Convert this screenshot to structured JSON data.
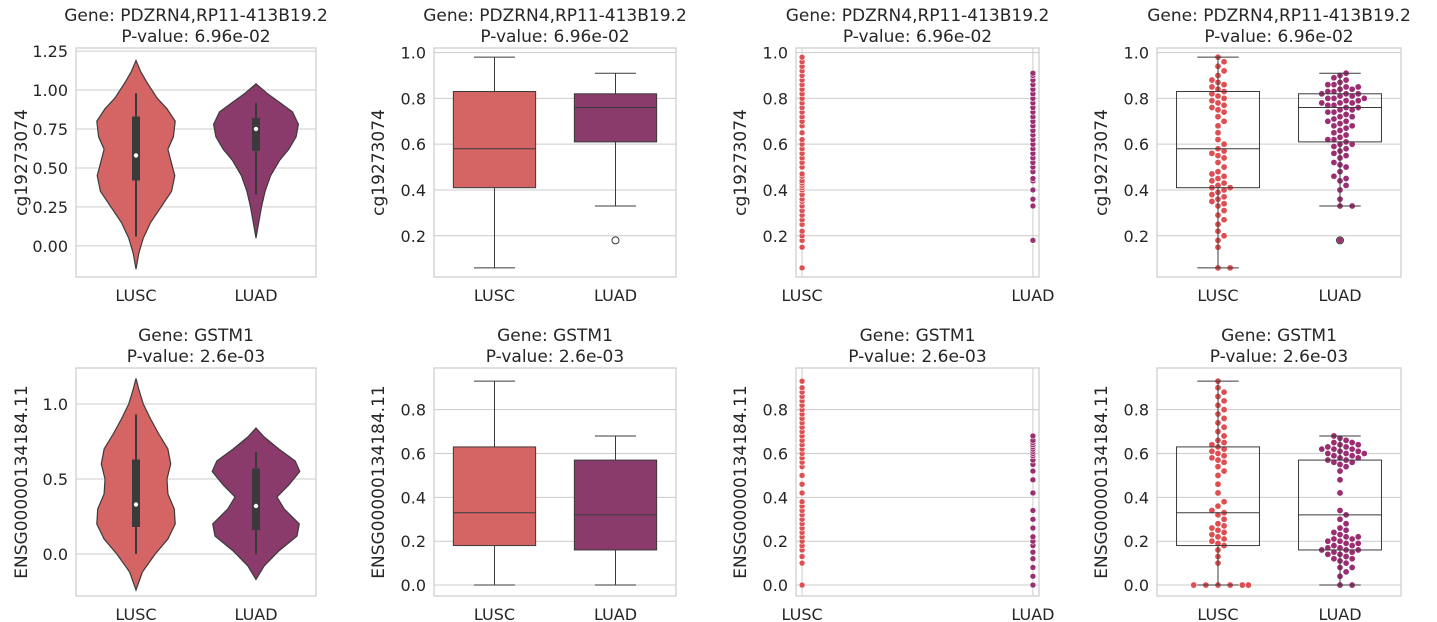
{
  "palette": {
    "LUSC": "#d56464",
    "LUAD": "#8a3b6b",
    "LUSC_point": "#dd4f52",
    "LUAD_point": "#9b2e72",
    "line": "#3b3b3b"
  },
  "chart_data": [
    {
      "type": "violin",
      "title": [
        "Gene: PDZRN4,RP11-413B19.2",
        "P-value: 6.96e-02"
      ],
      "ylabel": "cg19273074",
      "categories": [
        "LUSC",
        "LUAD"
      ],
      "ylim": [
        -0.2,
        1.27
      ],
      "yticks": [
        0.0,
        0.25,
        0.5,
        0.75,
        1.0,
        1.25
      ],
      "ytick_labels": [
        "0.00",
        "0.25",
        "0.50",
        "0.75",
        "1.00",
        "1.25"
      ],
      "violins": [
        {
          "min": -0.15,
          "max": 1.19,
          "median": 0.58,
          "q1": 0.42,
          "q3": 0.83,
          "wlo": 0.06,
          "whi": 0.98,
          "profile": [
            [
              -0.15,
              0.0
            ],
            [
              -0.05,
              0.06
            ],
            [
              0.05,
              0.16
            ],
            [
              0.15,
              0.32
            ],
            [
              0.25,
              0.55
            ],
            [
              0.35,
              0.78
            ],
            [
              0.45,
              0.85
            ],
            [
              0.55,
              0.76
            ],
            [
              0.62,
              0.7
            ],
            [
              0.7,
              0.82
            ],
            [
              0.8,
              0.86
            ],
            [
              0.88,
              0.68
            ],
            [
              0.95,
              0.46
            ],
            [
              1.05,
              0.24
            ],
            [
              1.12,
              0.1
            ],
            [
              1.19,
              0.0
            ]
          ]
        },
        {
          "min": 0.05,
          "max": 1.04,
          "median": 0.75,
          "q1": 0.61,
          "q3": 0.82,
          "wlo": 0.33,
          "whi": 0.92,
          "profile": [
            [
              0.05,
              0.0
            ],
            [
              0.15,
              0.06
            ],
            [
              0.25,
              0.12
            ],
            [
              0.35,
              0.2
            ],
            [
              0.45,
              0.32
            ],
            [
              0.55,
              0.52
            ],
            [
              0.62,
              0.72
            ],
            [
              0.7,
              0.88
            ],
            [
              0.78,
              0.93
            ],
            [
              0.86,
              0.8
            ],
            [
              0.92,
              0.52
            ],
            [
              0.98,
              0.24
            ],
            [
              1.04,
              0.0
            ]
          ]
        }
      ]
    },
    {
      "type": "box",
      "title": [
        "Gene: PDZRN4,RP11-413B19.2",
        "P-value: 6.96e-02"
      ],
      "ylabel": "cg19273074",
      "categories": [
        "LUSC",
        "LUAD"
      ],
      "ylim": [
        0.02,
        1.02
      ],
      "yticks": [
        0.2,
        0.4,
        0.6,
        0.8,
        1.0
      ],
      "ytick_labels": [
        "0.2",
        "0.4",
        "0.6",
        "0.8",
        "1.0"
      ],
      "boxes": [
        {
          "q1": 0.41,
          "median": 0.58,
          "q3": 0.83,
          "wlo": 0.06,
          "whi": 0.98,
          "outliers": []
        },
        {
          "q1": 0.61,
          "median": 0.76,
          "q3": 0.82,
          "wlo": 0.33,
          "whi": 0.91,
          "outliers": [
            0.18
          ]
        }
      ]
    },
    {
      "type": "scatter",
      "title": [
        "Gene: PDZRN4,RP11-413B19.2",
        "P-value: 6.96e-02"
      ],
      "ylabel": "cg19273074",
      "categories": [
        "LUSC",
        "LUAD"
      ],
      "ylim": [
        0.02,
        1.02
      ],
      "yticks": [
        0.2,
        0.4,
        0.6,
        0.8,
        1.0
      ],
      "ytick_labels": [
        "0.2",
        "0.4",
        "0.6",
        "0.8",
        "1.0"
      ],
      "points": [
        [
          0.06,
          0.15,
          0.18,
          0.2,
          0.22,
          0.25,
          0.27,
          0.29,
          0.31,
          0.33,
          0.35,
          0.36,
          0.38,
          0.4,
          0.41,
          0.42,
          0.43,
          0.44,
          0.46,
          0.47,
          0.5,
          0.52,
          0.54,
          0.56,
          0.58,
          0.6,
          0.62,
          0.65,
          0.68,
          0.7,
          0.72,
          0.74,
          0.76,
          0.78,
          0.8,
          0.82,
          0.84,
          0.86,
          0.88,
          0.9,
          0.92,
          0.94,
          0.96,
          0.98
        ],
        [
          0.18,
          0.33,
          0.36,
          0.4,
          0.44,
          0.45,
          0.48,
          0.5,
          0.52,
          0.54,
          0.56,
          0.58,
          0.6,
          0.62,
          0.64,
          0.66,
          0.68,
          0.7,
          0.72,
          0.74,
          0.76,
          0.78,
          0.8,
          0.82,
          0.84,
          0.86,
          0.88,
          0.9,
          0.91
        ]
      ]
    },
    {
      "type": "swarm_box",
      "title": [
        "Gene: PDZRN4,RP11-413B19.2",
        "P-value: 6.96e-02"
      ],
      "ylabel": "cg19273074",
      "categories": [
        "LUSC",
        "LUAD"
      ],
      "ylim": [
        0.02,
        1.02
      ],
      "yticks": [
        0.2,
        0.4,
        0.6,
        0.8,
        1.0
      ],
      "ytick_labels": [
        "0.2",
        "0.4",
        "0.6",
        "0.8",
        "1.0"
      ],
      "boxes": [
        {
          "q1": 0.41,
          "median": 0.58,
          "q3": 0.83,
          "wlo": 0.06,
          "whi": 0.98,
          "outliers": []
        },
        {
          "q1": 0.61,
          "median": 0.76,
          "q3": 0.82,
          "wlo": 0.33,
          "whi": 0.91,
          "outliers": [
            0.18
          ]
        }
      ],
      "points": [
        [
          0.06,
          0.06,
          0.15,
          0.18,
          0.2,
          0.22,
          0.25,
          0.27,
          0.29,
          0.31,
          0.33,
          0.34,
          0.35,
          0.36,
          0.37,
          0.38,
          0.39,
          0.4,
          0.41,
          0.41,
          0.42,
          0.43,
          0.44,
          0.45,
          0.46,
          0.47,
          0.48,
          0.5,
          0.52,
          0.54,
          0.55,
          0.56,
          0.57,
          0.58,
          0.6,
          0.62,
          0.65,
          0.68,
          0.7,
          0.72,
          0.74,
          0.75,
          0.76,
          0.77,
          0.78,
          0.79,
          0.8,
          0.81,
          0.82,
          0.83,
          0.84,
          0.85,
          0.86,
          0.87,
          0.88,
          0.9,
          0.92,
          0.94,
          0.96,
          0.98
        ],
        [
          0.18,
          0.33,
          0.33,
          0.36,
          0.4,
          0.42,
          0.44,
          0.45,
          0.46,
          0.48,
          0.5,
          0.51,
          0.52,
          0.54,
          0.55,
          0.56,
          0.57,
          0.58,
          0.59,
          0.6,
          0.6,
          0.61,
          0.62,
          0.62,
          0.63,
          0.64,
          0.65,
          0.66,
          0.67,
          0.68,
          0.68,
          0.69,
          0.7,
          0.7,
          0.71,
          0.72,
          0.72,
          0.73,
          0.74,
          0.74,
          0.75,
          0.75,
          0.76,
          0.76,
          0.77,
          0.77,
          0.78,
          0.78,
          0.78,
          0.79,
          0.79,
          0.8,
          0.8,
          0.8,
          0.81,
          0.81,
          0.82,
          0.82,
          0.82,
          0.83,
          0.83,
          0.84,
          0.84,
          0.85,
          0.85,
          0.86,
          0.86,
          0.87,
          0.88,
          0.89,
          0.9,
          0.91
        ]
      ]
    },
    {
      "type": "violin",
      "title": [
        "Gene: GSTM1",
        "P-value: 2.6e-03"
      ],
      "ylabel": "ENSG00000134184.11",
      "categories": [
        "LUSC",
        "LUAD"
      ],
      "ylim": [
        -0.28,
        1.24
      ],
      "yticks": [
        0.0,
        0.5,
        1.0
      ],
      "ytick_labels": [
        "0.0",
        "0.5",
        "1.0"
      ],
      "violins": [
        {
          "min": -0.24,
          "max": 1.17,
          "median": 0.33,
          "q1": 0.18,
          "q3": 0.63,
          "wlo": 0.0,
          "whi": 0.93,
          "profile": [
            [
              -0.24,
              0.0
            ],
            [
              -0.12,
              0.14
            ],
            [
              0.0,
              0.42
            ],
            [
              0.1,
              0.7
            ],
            [
              0.2,
              0.86
            ],
            [
              0.3,
              0.84
            ],
            [
              0.4,
              0.7
            ],
            [
              0.5,
              0.68
            ],
            [
              0.6,
              0.76
            ],
            [
              0.7,
              0.7
            ],
            [
              0.8,
              0.5
            ],
            [
              0.9,
              0.32
            ],
            [
              1.0,
              0.16
            ],
            [
              1.1,
              0.06
            ],
            [
              1.17,
              0.0
            ]
          ]
        },
        {
          "min": -0.17,
          "max": 0.84,
          "median": 0.32,
          "q1": 0.16,
          "q3": 0.57,
          "wlo": 0.0,
          "whi": 0.68,
          "profile": [
            [
              -0.17,
              0.0
            ],
            [
              -0.08,
              0.18
            ],
            [
              0.02,
              0.5
            ],
            [
              0.12,
              0.9
            ],
            [
              0.2,
              0.95
            ],
            [
              0.3,
              0.62
            ],
            [
              0.38,
              0.46
            ],
            [
              0.46,
              0.72
            ],
            [
              0.55,
              0.96
            ],
            [
              0.62,
              0.86
            ],
            [
              0.7,
              0.5
            ],
            [
              0.78,
              0.18
            ],
            [
              0.84,
              0.0
            ]
          ]
        }
      ]
    },
    {
      "type": "box",
      "title": [
        "Gene: GSTM1",
        "P-value: 2.6e-03"
      ],
      "ylabel": "ENSG00000134184.11",
      "categories": [
        "LUSC",
        "LUAD"
      ],
      "ylim": [
        -0.05,
        0.99
      ],
      "yticks": [
        0.0,
        0.2,
        0.4,
        0.6,
        0.8
      ],
      "ytick_labels": [
        "0.0",
        "0.2",
        "0.4",
        "0.6",
        "0.8"
      ],
      "boxes": [
        {
          "q1": 0.18,
          "median": 0.33,
          "q3": 0.63,
          "wlo": 0.0,
          "whi": 0.93,
          "outliers": []
        },
        {
          "q1": 0.16,
          "median": 0.32,
          "q3": 0.57,
          "wlo": 0.0,
          "whi": 0.68,
          "outliers": []
        }
      ]
    },
    {
      "type": "scatter",
      "title": [
        "Gene: GSTM1",
        "P-value: 2.6e-03"
      ],
      "ylabel": "ENSG00000134184.11",
      "categories": [
        "LUSC",
        "LUAD"
      ],
      "ylim": [
        -0.05,
        0.99
      ],
      "yticks": [
        0.0,
        0.2,
        0.4,
        0.6,
        0.8
      ],
      "ytick_labels": [
        "0.0",
        "0.2",
        "0.4",
        "0.6",
        "0.8"
      ],
      "points": [
        [
          0.0,
          0.1,
          0.13,
          0.16,
          0.18,
          0.2,
          0.22,
          0.24,
          0.26,
          0.28,
          0.3,
          0.32,
          0.34,
          0.36,
          0.38,
          0.42,
          0.46,
          0.5,
          0.54,
          0.56,
          0.58,
          0.6,
          0.62,
          0.64,
          0.66,
          0.68,
          0.7,
          0.72,
          0.74,
          0.76,
          0.78,
          0.8,
          0.82,
          0.84,
          0.86,
          0.88,
          0.9,
          0.93
        ],
        [
          0.0,
          0.04,
          0.08,
          0.12,
          0.15,
          0.18,
          0.2,
          0.22,
          0.26,
          0.3,
          0.34,
          0.42,
          0.48,
          0.52,
          0.55,
          0.57,
          0.59,
          0.6,
          0.61,
          0.62,
          0.63,
          0.64,
          0.65,
          0.66,
          0.68
        ]
      ]
    },
    {
      "type": "swarm_box",
      "title": [
        "Gene: GSTM1",
        "P-value: 2.6e-03"
      ],
      "ylabel": "ENSG00000134184.11",
      "categories": [
        "LUSC",
        "LUAD"
      ],
      "ylim": [
        -0.05,
        0.99
      ],
      "yticks": [
        0.0,
        0.2,
        0.4,
        0.6,
        0.8
      ],
      "ytick_labels": [
        "0.0",
        "0.2",
        "0.4",
        "0.6",
        "0.8"
      ],
      "boxes": [
        {
          "q1": 0.18,
          "median": 0.33,
          "q3": 0.63,
          "wlo": 0.0,
          "whi": 0.93,
          "outliers": []
        },
        {
          "q1": 0.16,
          "median": 0.32,
          "q3": 0.57,
          "wlo": 0.0,
          "whi": 0.68,
          "outliers": []
        }
      ],
      "points": [
        [
          0.0,
          0.0,
          0.0,
          0.0,
          0.0,
          0.0,
          0.1,
          0.13,
          0.16,
          0.18,
          0.19,
          0.2,
          0.21,
          0.22,
          0.23,
          0.24,
          0.25,
          0.26,
          0.27,
          0.28,
          0.3,
          0.32,
          0.33,
          0.34,
          0.36,
          0.38,
          0.42,
          0.46,
          0.5,
          0.52,
          0.54,
          0.56,
          0.57,
          0.58,
          0.59,
          0.6,
          0.61,
          0.62,
          0.63,
          0.64,
          0.65,
          0.66,
          0.68,
          0.7,
          0.72,
          0.74,
          0.76,
          0.78,
          0.8,
          0.82,
          0.84,
          0.86,
          0.88,
          0.9,
          0.93
        ],
        [
          0.0,
          0.0,
          0.04,
          0.06,
          0.08,
          0.08,
          0.1,
          0.11,
          0.12,
          0.12,
          0.13,
          0.14,
          0.14,
          0.15,
          0.15,
          0.16,
          0.16,
          0.16,
          0.17,
          0.17,
          0.18,
          0.18,
          0.19,
          0.19,
          0.2,
          0.2,
          0.21,
          0.21,
          0.22,
          0.22,
          0.23,
          0.24,
          0.25,
          0.26,
          0.28,
          0.3,
          0.32,
          0.34,
          0.42,
          0.48,
          0.52,
          0.54,
          0.55,
          0.56,
          0.56,
          0.57,
          0.57,
          0.58,
          0.58,
          0.59,
          0.59,
          0.6,
          0.6,
          0.6,
          0.61,
          0.61,
          0.62,
          0.62,
          0.62,
          0.63,
          0.63,
          0.64,
          0.64,
          0.65,
          0.65,
          0.66,
          0.67,
          0.68
        ]
      ]
    }
  ]
}
